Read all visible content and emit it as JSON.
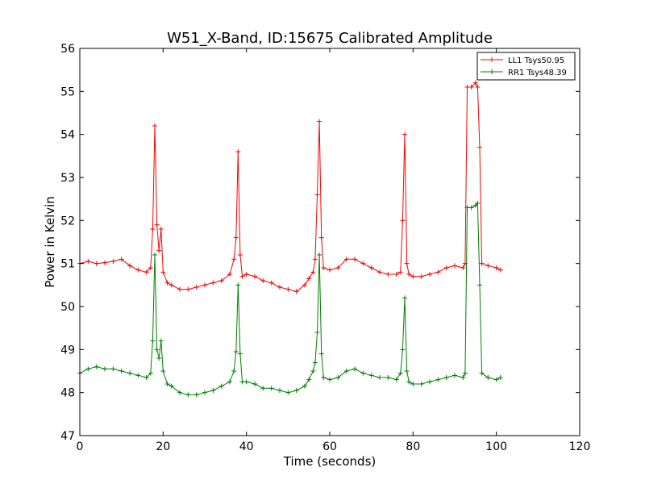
{
  "chart_data": {
    "type": "line",
    "title": "W51_X-Band, ID:15675 Calibrated Amplitude",
    "xlabel": "Time (seconds)",
    "ylabel": "Power in Kelvin",
    "xlim": [
      0,
      120
    ],
    "ylim": [
      47,
      56
    ],
    "xticks": [
      0,
      20,
      40,
      60,
      80,
      100,
      120
    ],
    "yticks": [
      47,
      48,
      49,
      50,
      51,
      52,
      53,
      54,
      55,
      56
    ],
    "grid": false,
    "legend_position": "top-right",
    "marker": "+",
    "series": [
      {
        "name": "LL1 Tsys50.95",
        "color": "#ff0000",
        "points": [
          [
            0,
            51.0
          ],
          [
            2,
            51.05
          ],
          [
            4,
            51.0
          ],
          [
            6,
            51.02
          ],
          [
            8,
            51.05
          ],
          [
            10,
            51.1
          ],
          [
            12,
            50.95
          ],
          [
            14,
            50.85
          ],
          [
            16,
            50.8
          ],
          [
            17,
            50.9
          ],
          [
            17.5,
            51.8
          ],
          [
            18,
            54.2
          ],
          [
            18.5,
            51.9
          ],
          [
            19,
            51.3
          ],
          [
            19.5,
            51.8
          ],
          [
            20,
            50.8
          ],
          [
            21,
            50.55
          ],
          [
            22,
            50.5
          ],
          [
            24,
            50.4
          ],
          [
            26,
            50.4
          ],
          [
            28,
            50.45
          ],
          [
            30,
            50.5
          ],
          [
            32,
            50.55
          ],
          [
            34,
            50.6
          ],
          [
            36,
            50.75
          ],
          [
            37,
            51.1
          ],
          [
            37.5,
            51.6
          ],
          [
            38,
            53.6
          ],
          [
            38.5,
            51.2
          ],
          [
            39,
            50.7
          ],
          [
            40,
            50.75
          ],
          [
            42,
            50.7
          ],
          [
            44,
            50.6
          ],
          [
            46,
            50.55
          ],
          [
            48,
            50.45
          ],
          [
            50,
            50.4
          ],
          [
            52,
            50.35
          ],
          [
            54,
            50.5
          ],
          [
            55,
            50.65
          ],
          [
            56,
            50.8
          ],
          [
            56.5,
            51.1
          ],
          [
            57,
            52.6
          ],
          [
            57.5,
            54.3
          ],
          [
            58,
            51.6
          ],
          [
            58.5,
            50.9
          ],
          [
            60,
            50.85
          ],
          [
            62,
            50.9
          ],
          [
            64,
            51.1
          ],
          [
            66,
            51.1
          ],
          [
            68,
            51.0
          ],
          [
            70,
            50.9
          ],
          [
            72,
            50.8
          ],
          [
            74,
            50.75
          ],
          [
            76,
            50.75
          ],
          [
            77,
            50.8
          ],
          [
            77.5,
            52.0
          ],
          [
            78,
            54.0
          ],
          [
            78.5,
            51.0
          ],
          [
            79,
            50.75
          ],
          [
            80,
            50.7
          ],
          [
            82,
            50.7
          ],
          [
            84,
            50.75
          ],
          [
            86,
            50.8
          ],
          [
            88,
            50.9
          ],
          [
            90,
            50.95
          ],
          [
            92,
            50.9
          ],
          [
            92.5,
            51.0
          ],
          [
            93,
            55.1
          ],
          [
            94,
            55.1
          ],
          [
            95,
            55.2
          ],
          [
            95.5,
            55.1
          ],
          [
            96,
            53.7
          ],
          [
            96.5,
            51.0
          ],
          [
            98,
            50.95
          ],
          [
            100,
            50.9
          ],
          [
            101,
            50.85
          ]
        ]
      },
      {
        "name": "RR1 Tsys48.39",
        "color": "#008000",
        "points": [
          [
            0,
            48.45
          ],
          [
            2,
            48.55
          ],
          [
            4,
            48.6
          ],
          [
            6,
            48.55
          ],
          [
            8,
            48.55
          ],
          [
            10,
            48.5
          ],
          [
            12,
            48.45
          ],
          [
            14,
            48.4
          ],
          [
            16,
            48.35
          ],
          [
            17,
            48.45
          ],
          [
            17.5,
            49.2
          ],
          [
            18,
            51.2
          ],
          [
            18.5,
            49.0
          ],
          [
            19,
            48.8
          ],
          [
            19.5,
            49.2
          ],
          [
            20,
            48.5
          ],
          [
            21,
            48.2
          ],
          [
            22,
            48.15
          ],
          [
            24,
            48.0
          ],
          [
            26,
            47.95
          ],
          [
            28,
            47.95
          ],
          [
            30,
            48.0
          ],
          [
            32,
            48.05
          ],
          [
            34,
            48.15
          ],
          [
            36,
            48.25
          ],
          [
            37,
            48.5
          ],
          [
            37.5,
            48.95
          ],
          [
            38,
            50.5
          ],
          [
            38.5,
            48.9
          ],
          [
            39,
            48.25
          ],
          [
            40,
            48.25
          ],
          [
            42,
            48.2
          ],
          [
            44,
            48.1
          ],
          [
            46,
            48.1
          ],
          [
            48,
            48.05
          ],
          [
            50,
            48.0
          ],
          [
            52,
            48.05
          ],
          [
            54,
            48.15
          ],
          [
            55,
            48.3
          ],
          [
            56,
            48.5
          ],
          [
            56.5,
            48.7
          ],
          [
            57,
            49.4
          ],
          [
            57.5,
            51.2
          ],
          [
            58,
            48.9
          ],
          [
            58.5,
            48.35
          ],
          [
            60,
            48.3
          ],
          [
            62,
            48.35
          ],
          [
            64,
            48.5
          ],
          [
            66,
            48.55
          ],
          [
            68,
            48.45
          ],
          [
            70,
            48.4
          ],
          [
            72,
            48.35
          ],
          [
            74,
            48.35
          ],
          [
            76,
            48.3
          ],
          [
            77,
            48.45
          ],
          [
            77.5,
            49.0
          ],
          [
            78,
            50.2
          ],
          [
            78.5,
            48.5
          ],
          [
            79,
            48.25
          ],
          [
            80,
            48.2
          ],
          [
            82,
            48.2
          ],
          [
            84,
            48.25
          ],
          [
            86,
            48.3
          ],
          [
            88,
            48.35
          ],
          [
            90,
            48.4
          ],
          [
            92,
            48.35
          ],
          [
            92.5,
            48.45
          ],
          [
            93,
            52.3
          ],
          [
            94,
            52.3
          ],
          [
            95,
            52.35
          ],
          [
            95.5,
            52.4
          ],
          [
            96,
            50.5
          ],
          [
            96.5,
            48.45
          ],
          [
            98,
            48.35
          ],
          [
            100,
            48.3
          ],
          [
            101,
            48.35
          ]
        ]
      }
    ]
  }
}
